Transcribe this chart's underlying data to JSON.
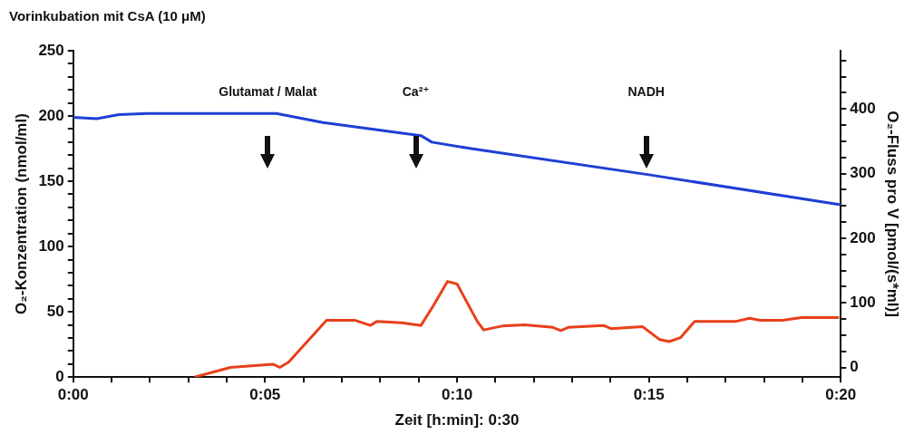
{
  "chart_data": {
    "type": "line",
    "title": "Vorinkubation mit CsA (10 μM)",
    "xlabel": "Zeit [h:min]: 0:30",
    "ylabel": "O₂-Konzentration (nmol/ml)",
    "y2label": "O₂-Fluss pro V [pmol/(s*ml)]",
    "xlim": [
      0,
      0.3333
    ],
    "xticks": [
      {
        "value": 0,
        "label": "0:00"
      },
      {
        "value": 0.0167,
        "label": null
      },
      {
        "value": 0.0333,
        "label": null
      },
      {
        "value": 0.05,
        "label": null
      },
      {
        "value": 0.0667,
        "label": null
      },
      {
        "value": 0.0833,
        "label": "0:05"
      },
      {
        "value": 0.1,
        "label": null
      },
      {
        "value": 0.1167,
        "label": null
      },
      {
        "value": 0.1333,
        "label": null
      },
      {
        "value": 0.15,
        "label": null
      },
      {
        "value": 0.1667,
        "label": "0:10"
      },
      {
        "value": 0.1833,
        "label": null
      },
      {
        "value": 0.2,
        "label": null
      },
      {
        "value": 0.2167,
        "label": null
      },
      {
        "value": 0.2333,
        "label": null
      },
      {
        "value": 0.25,
        "label": "0:15"
      },
      {
        "value": 0.2667,
        "label": null
      },
      {
        "value": 0.2833,
        "label": null
      },
      {
        "value": 0.3,
        "label": null
      },
      {
        "value": 0.3167,
        "label": null
      },
      {
        "value": 0.3333,
        "label": "0:20"
      }
    ],
    "ylim": [
      0,
      250
    ],
    "yticks": [
      0,
      {
        "value": 10,
        "label": null
      },
      {
        "value": 20,
        "label": null
      },
      {
        "value": 30,
        "label": null
      },
      {
        "value": 40,
        "label": null
      },
      50,
      {
        "value": 60,
        "label": null
      },
      {
        "value": 70,
        "label": null
      },
      {
        "value": 80,
        "label": null
      },
      {
        "value": 90,
        "label": null
      },
      100,
      {
        "value": 110,
        "label": null
      },
      {
        "value": 120,
        "label": null
      },
      {
        "value": 130,
        "label": null
      },
      {
        "value": 140,
        "label": null
      },
      150,
      {
        "value": 160,
        "label": null
      },
      {
        "value": 170,
        "label": null
      },
      {
        "value": 180,
        "label": null
      },
      {
        "value": 190,
        "label": null
      },
      200,
      {
        "value": 210,
        "label": null
      },
      {
        "value": 220,
        "label": null
      },
      {
        "value": 230,
        "label": null
      },
      {
        "value": 240,
        "label": null
      },
      250
    ],
    "y2lim": [
      -15,
      490
    ],
    "y2ticks": [
      0,
      {
        "value": 25,
        "label": null
      },
      {
        "value": 50,
        "label": null
      },
      {
        "value": 75,
        "label": null
      },
      100,
      {
        "value": 125,
        "label": null
      },
      {
        "value": 150,
        "label": null
      },
      {
        "value": 175,
        "label": null
      },
      200,
      {
        "value": 225,
        "label": null
      },
      {
        "value": 250,
        "label": null
      },
      {
        "value": 275,
        "label": null
      },
      300,
      {
        "value": 325,
        "label": null
      },
      {
        "value": 350,
        "label": null
      },
      {
        "value": 375,
        "label": null
      },
      400,
      {
        "value": 425,
        "label": null
      },
      {
        "value": 450,
        "label": null
      },
      {
        "value": 475,
        "label": null
      }
    ],
    "series": [
      {
        "color": "#1f3fd6",
        "x": [
          0,
          0.0102,
          0.0198,
          0.0322,
          0.0882,
          0.1085,
          0.151,
          0.1557,
          0.1728,
          0.25,
          0.3333
        ],
        "values": [
          199,
          198,
          201,
          202,
          202,
          195,
          185,
          180,
          175,
          155,
          132
        ]
      },
      {
        "color": "#e8401c",
        "axis": "y2",
        "x": [
          0.0527,
          0.0683,
          0.0867,
          0.0897,
          0.0935,
          0.11,
          0.1222,
          0.129,
          0.1318,
          0.1427,
          0.151,
          0.1563,
          0.1625,
          0.1667,
          0.1755,
          0.1782,
          0.1863,
          0.196,
          0.2083,
          0.2117,
          0.215,
          0.2302,
          0.2335,
          0.2472,
          0.2547,
          0.2588,
          0.2637,
          0.2698,
          0.2875,
          0.2937,
          0.2983,
          0.308,
          0.3162,
          0.3325
        ],
        "values": [
          -15,
          0,
          5,
          0,
          8,
          73,
          73,
          65,
          71,
          69,
          65,
          95,
          133,
          129,
          71,
          58,
          64,
          66,
          62,
          57,
          62,
          65,
          60,
          63,
          43,
          40,
          46,
          71,
          71,
          76,
          73,
          73,
          77,
          77
        ]
      }
    ],
    "annotations": [
      "Glutamat / Malat",
      "Ca²⁺",
      "NADH"
    ]
  }
}
